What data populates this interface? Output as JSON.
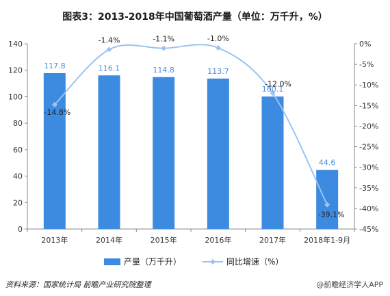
{
  "chart_data": {
    "type": "bar",
    "title": "图表3：2013-2018年中国葡萄酒产量（单位：万千升，%）",
    "categories": [
      "2013年",
      "2014年",
      "2015年",
      "2016年",
      "2017年",
      "2018年1-9月"
    ],
    "series": [
      {
        "name": "产量（万千升）",
        "type": "bar",
        "axis": "left",
        "color": "#3d8be0",
        "values": [
          117.8,
          116.1,
          114.8,
          113.7,
          100.1,
          44.6
        ],
        "labels": [
          "117.8",
          "116.1",
          "114.8",
          "113.7",
          "100.1",
          "44.6"
        ]
      },
      {
        "name": "同比增速（%）",
        "type": "line",
        "axis": "right",
        "color": "#9cc3f0",
        "values": [
          -14.8,
          -1.4,
          -1.1,
          -1.0,
          -12.0,
          -39.1
        ],
        "labels": [
          "-14.8%",
          "-1.4%",
          "-1.1%",
          "-1.0%",
          "-12.0%",
          "-39.1%"
        ]
      }
    ],
    "left_axis": {
      "ylim": [
        0,
        140
      ],
      "ticks": [
        "0",
        "20",
        "40",
        "60",
        "80",
        "100",
        "120",
        "140"
      ]
    },
    "right_axis": {
      "ylim": [
        -45,
        0
      ],
      "ticks": [
        "0%",
        "-5%",
        "-10%",
        "-15%",
        "-20%",
        "-25%",
        "-30%",
        "-35%",
        "-40%",
        "-45%"
      ]
    },
    "grid": false,
    "legend_position": "bottom"
  },
  "footer": {
    "source": "资料来源：国家统计局 前瞻产业研究院整理",
    "credit": "@前瞻经济学人APP"
  }
}
